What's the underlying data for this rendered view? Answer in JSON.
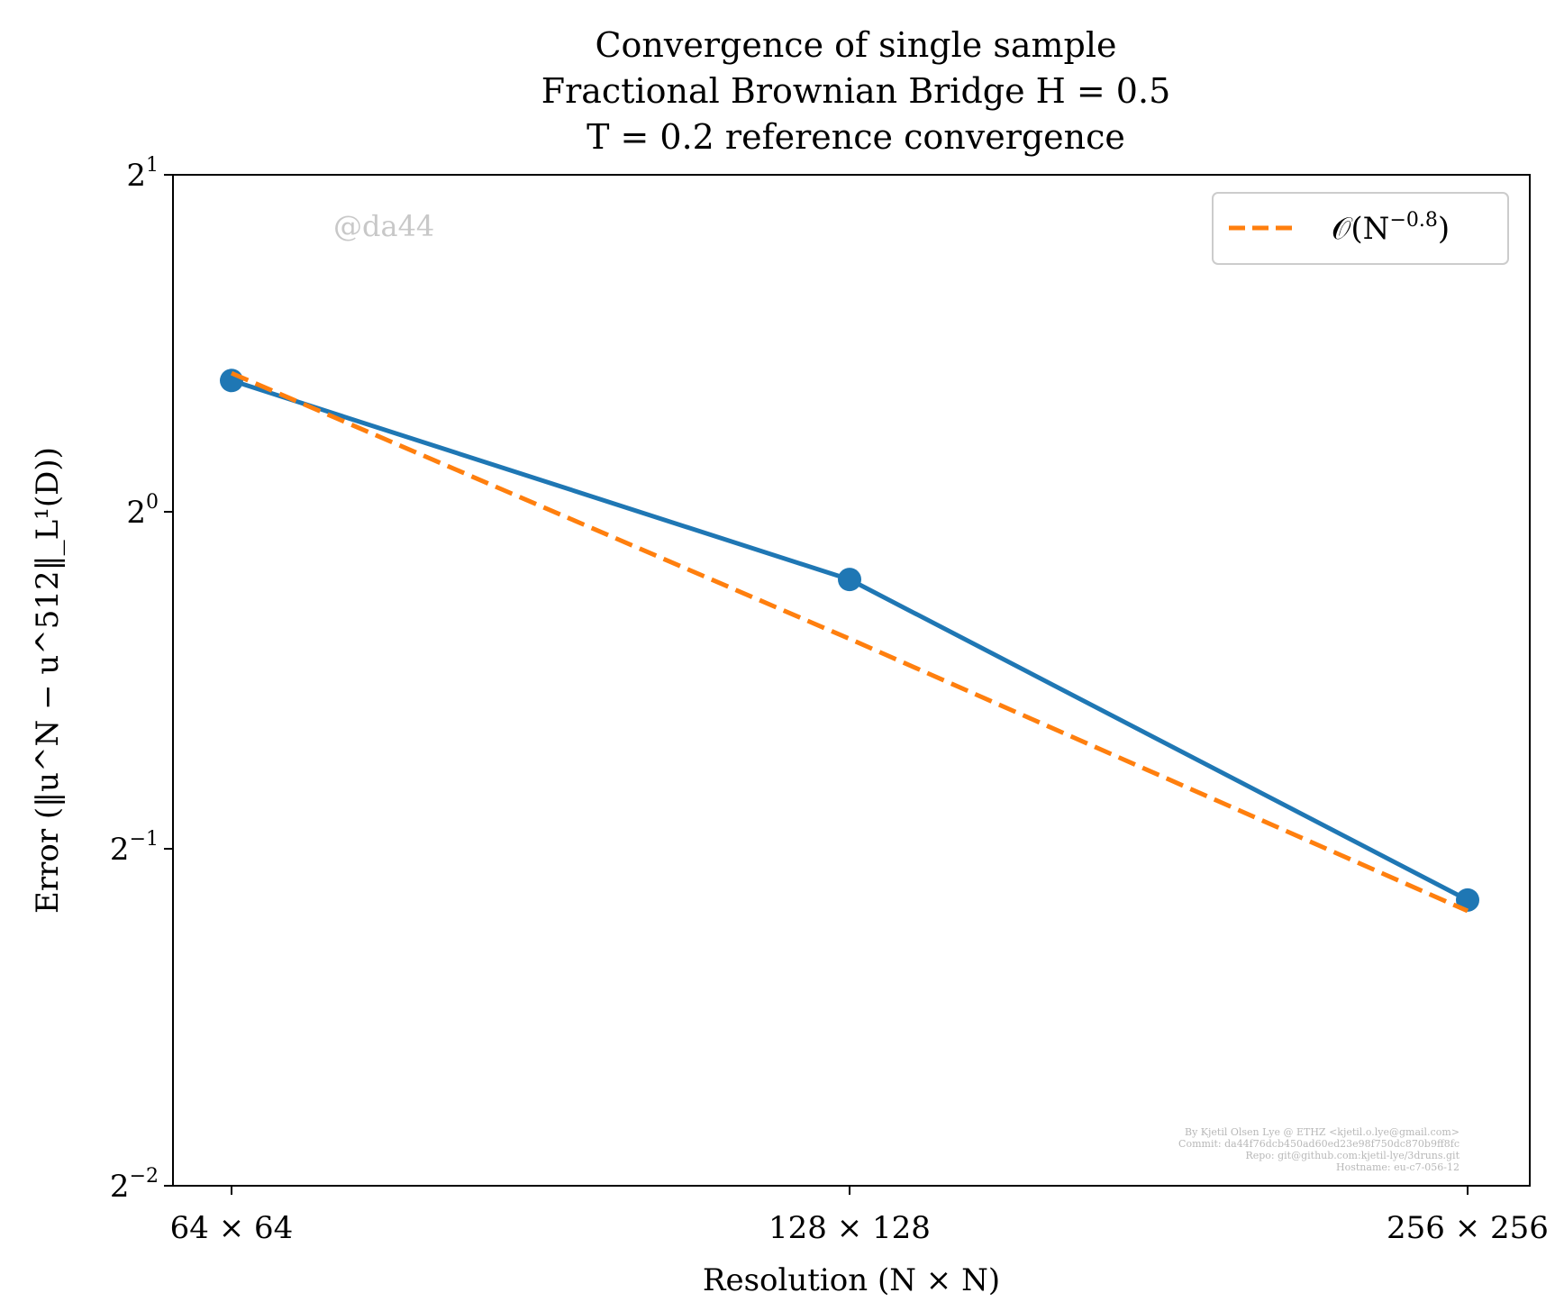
{
  "chart_data": {
    "type": "line",
    "title_lines": [
      "Convergence of single sample",
      "Fractional Brownian Bridge H = 0.5",
      "T = 0.2 reference convergence"
    ],
    "xlabel": "Resolution (N × N)",
    "ylabel": "Error (‖u^N − u^512‖_L¹(D))",
    "x_tick_labels": [
      "64 × 64",
      "128 × 128",
      "256 × 256"
    ],
    "x_values": [
      64,
      128,
      256
    ],
    "x_scale": "log2",
    "y_scale": "log2",
    "y_tick_labels": [
      {
        "base": "2",
        "exp": "1"
      },
      {
        "base": "2",
        "exp": "0"
      },
      {
        "base": "2",
        "exp": "−1"
      },
      {
        "base": "2",
        "exp": "−2"
      }
    ],
    "y_tick_values": [
      2,
      1,
      0.5,
      0.25
    ],
    "ylim": [
      0.25,
      2
    ],
    "grid": false,
    "legend_position": "top-right",
    "series": [
      {
        "values": [
          1.31,
          0.87,
          0.45
        ],
        "color": "#1f77b4",
        "style": "solid",
        "markers": true
      },
      {
        "name": "O(N^−0.8)",
        "values": [
          1.33,
          0.77,
          0.44
        ],
        "color": "#ff7f0e",
        "style": "dashed",
        "markers": false
      }
    ],
    "legend": {
      "label_prefix": "𝒪(N",
      "label_exp": "−0.8",
      "label_suffix": ")"
    },
    "watermark": "@da44",
    "credits": [
      "By Kjetil Olsen Lye @ ETHZ <kjetil.o.lye@gmail.com>",
      "Commit: da44f76dcb450ad60ed23e98f750dc870b9ff8fc",
      "Repo: git@github.com:kjetil-lye/3druns.git",
      "Hostname: eu-c7-056-12"
    ]
  }
}
